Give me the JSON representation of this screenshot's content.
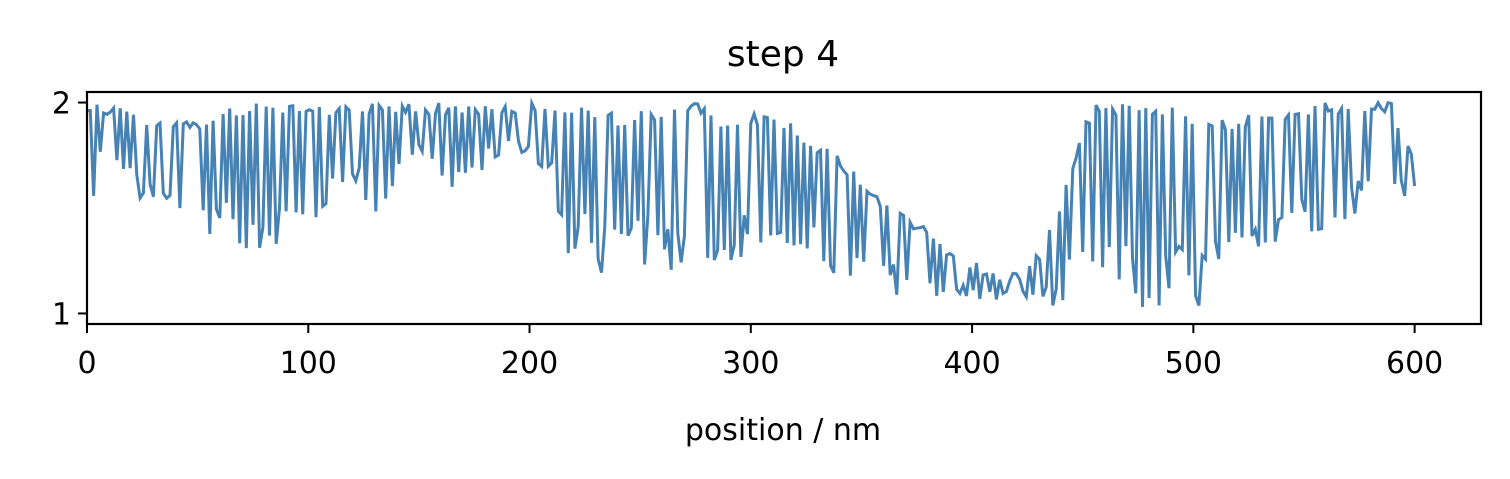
{
  "chart_data": {
    "type": "line",
    "title": "step 4",
    "xlabel": "position / nm",
    "ylabel": "",
    "xlim": [
      0,
      630
    ],
    "ylim": [
      0.95,
      2.05
    ],
    "x_ticks": [
      0,
      100,
      200,
      300,
      400,
      500,
      600
    ],
    "y_ticks": [
      1,
      2
    ],
    "x_tick_labels": [
      "0",
      "100",
      "200",
      "300",
      "400",
      "500",
      "600"
    ],
    "y_tick_labels": [
      "1",
      "2"
    ],
    "grid": false,
    "legend": "none",
    "series_color": "#4682b4",
    "step": 1.5,
    "series": [
      {
        "x_start": 0,
        "x_end": 601,
        "envelope": {
          "x": [
            0,
            5,
            20,
            35,
            50,
            60,
            70,
            80,
            90,
            100,
            110,
            120,
            130,
            140,
            150,
            160,
            170,
            180,
            190,
            200,
            210,
            215,
            220,
            225,
            230,
            240,
            250,
            260,
            270,
            280,
            290,
            300,
            310,
            320,
            330,
            340,
            350,
            360,
            370,
            380,
            390,
            400,
            410,
            420,
            430,
            440,
            450,
            455,
            460,
            470,
            480,
            490,
            500,
            510,
            520,
            530,
            540,
            550,
            560,
            570,
            580,
            590,
            600
          ],
          "upper": [
            2.0,
            2.0,
            1.97,
            1.93,
            1.92,
            1.95,
            2.0,
            2.0,
            2.0,
            2.0,
            2.0,
            2.0,
            2.0,
            2.0,
            2.0,
            2.0,
            2.0,
            2.0,
            2.0,
            2.0,
            2.0,
            2.0,
            2.0,
            2.0,
            1.97,
            1.95,
            1.96,
            1.98,
            2.0,
            2.0,
            1.9,
            1.95,
            1.95,
            1.9,
            1.82,
            1.75,
            1.65,
            1.55,
            1.48,
            1.4,
            1.32,
            1.26,
            1.2,
            1.2,
            1.3,
            1.55,
            1.9,
            2.0,
            2.0,
            2.0,
            2.0,
            2.0,
            1.95,
            1.93,
            1.93,
            1.95,
            1.95,
            1.97,
            2.0,
            2.0,
            2.0,
            2.0,
            1.72
          ],
          "lower": [
            1.0,
            1.7,
            1.55,
            1.45,
            1.4,
            1.35,
            1.25,
            1.3,
            1.35,
            1.3,
            1.55,
            1.65,
            1.4,
            1.6,
            1.75,
            1.6,
            1.55,
            1.7,
            1.75,
            1.75,
            1.6,
            1.3,
            1.25,
            1.2,
            1.18,
            1.18,
            1.2,
            1.2,
            1.2,
            1.25,
            1.25,
            1.25,
            1.25,
            1.25,
            1.2,
            1.15,
            1.12,
            1.1,
            1.08,
            1.08,
            1.07,
            1.07,
            1.05,
            1.07,
            1.05,
            1.03,
            1.02,
            1.0,
            1.0,
            1.0,
            1.0,
            1.0,
            1.0,
            1.05,
            1.15,
            1.3,
            1.35,
            1.35,
            1.4,
            1.45,
            1.5,
            1.55,
            1.55
          ]
        },
        "final_value": 1.6
      }
    ]
  }
}
